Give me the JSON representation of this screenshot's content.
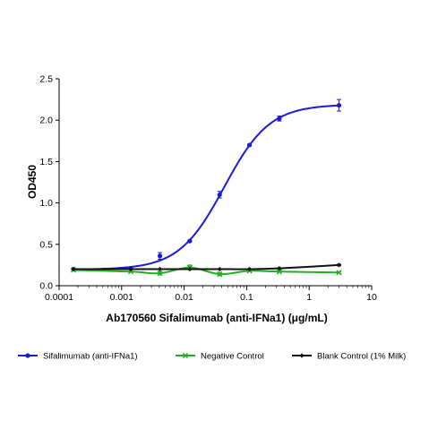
{
  "chart_data": {
    "type": "scatter",
    "title": "",
    "xlabel": "Ab170560 Sifalimumab (anti-IFNa1) (μg/mL)",
    "ylabel": "OD450",
    "xscale": "log",
    "xlim": [
      0.0001,
      10
    ],
    "ylim": [
      0,
      2.5
    ],
    "x_ticks": [
      0.0001,
      0.001,
      0.01,
      0.1,
      1,
      10
    ],
    "x_tick_labels": [
      "0.0001",
      "0.001",
      "0.01",
      "0.1",
      "1",
      "10"
    ],
    "y_ticks": [
      0,
      0.5,
      1.0,
      1.5,
      2.0,
      2.5
    ],
    "y_tick_labels": [
      "0.0",
      "0.5",
      "1.0",
      "1.5",
      "2.0",
      "2.5"
    ],
    "grid": false,
    "legend_position": "bottom",
    "series": [
      {
        "name": "Sifalimumab (anti-IFNa1)",
        "color": "#1a1adb",
        "marker": "circle",
        "fit": "sigmoidal",
        "x": [
          0.00017,
          0.0014,
          0.0041,
          0.0123,
          0.037,
          0.111,
          0.333,
          3.0
        ],
        "y": [
          0.2,
          0.21,
          0.36,
          0.54,
          1.1,
          1.7,
          2.02,
          2.18
        ],
        "error": [
          0.01,
          0.01,
          0.04,
          0.01,
          0.04,
          0.01,
          0.03,
          0.07
        ]
      },
      {
        "name": "Negative Control",
        "color": "#22b022",
        "marker": "x",
        "fit": "line",
        "x": [
          0.00017,
          0.0014,
          0.0041,
          0.0123,
          0.037,
          0.111,
          0.333,
          3.0
        ],
        "y": [
          0.19,
          0.17,
          0.15,
          0.22,
          0.14,
          0.18,
          0.17,
          0.16
        ],
        "error": [
          0.005,
          0.005,
          0.02,
          0.03,
          0.02,
          0.005,
          0.005,
          0.01
        ]
      },
      {
        "name": "Blank Control (1% Milk)",
        "color": "#111111",
        "marker": "diamond",
        "fit": "line",
        "x": [
          0.00017,
          0.0014,
          0.0041,
          0.0123,
          0.037,
          0.111,
          0.333,
          3.0
        ],
        "y": [
          0.2,
          0.2,
          0.2,
          0.2,
          0.2,
          0.2,
          0.21,
          0.25
        ],
        "error": [
          0.005,
          0.005,
          0.005,
          0.005,
          0.005,
          0.005,
          0.005,
          0.01
        ]
      }
    ]
  }
}
